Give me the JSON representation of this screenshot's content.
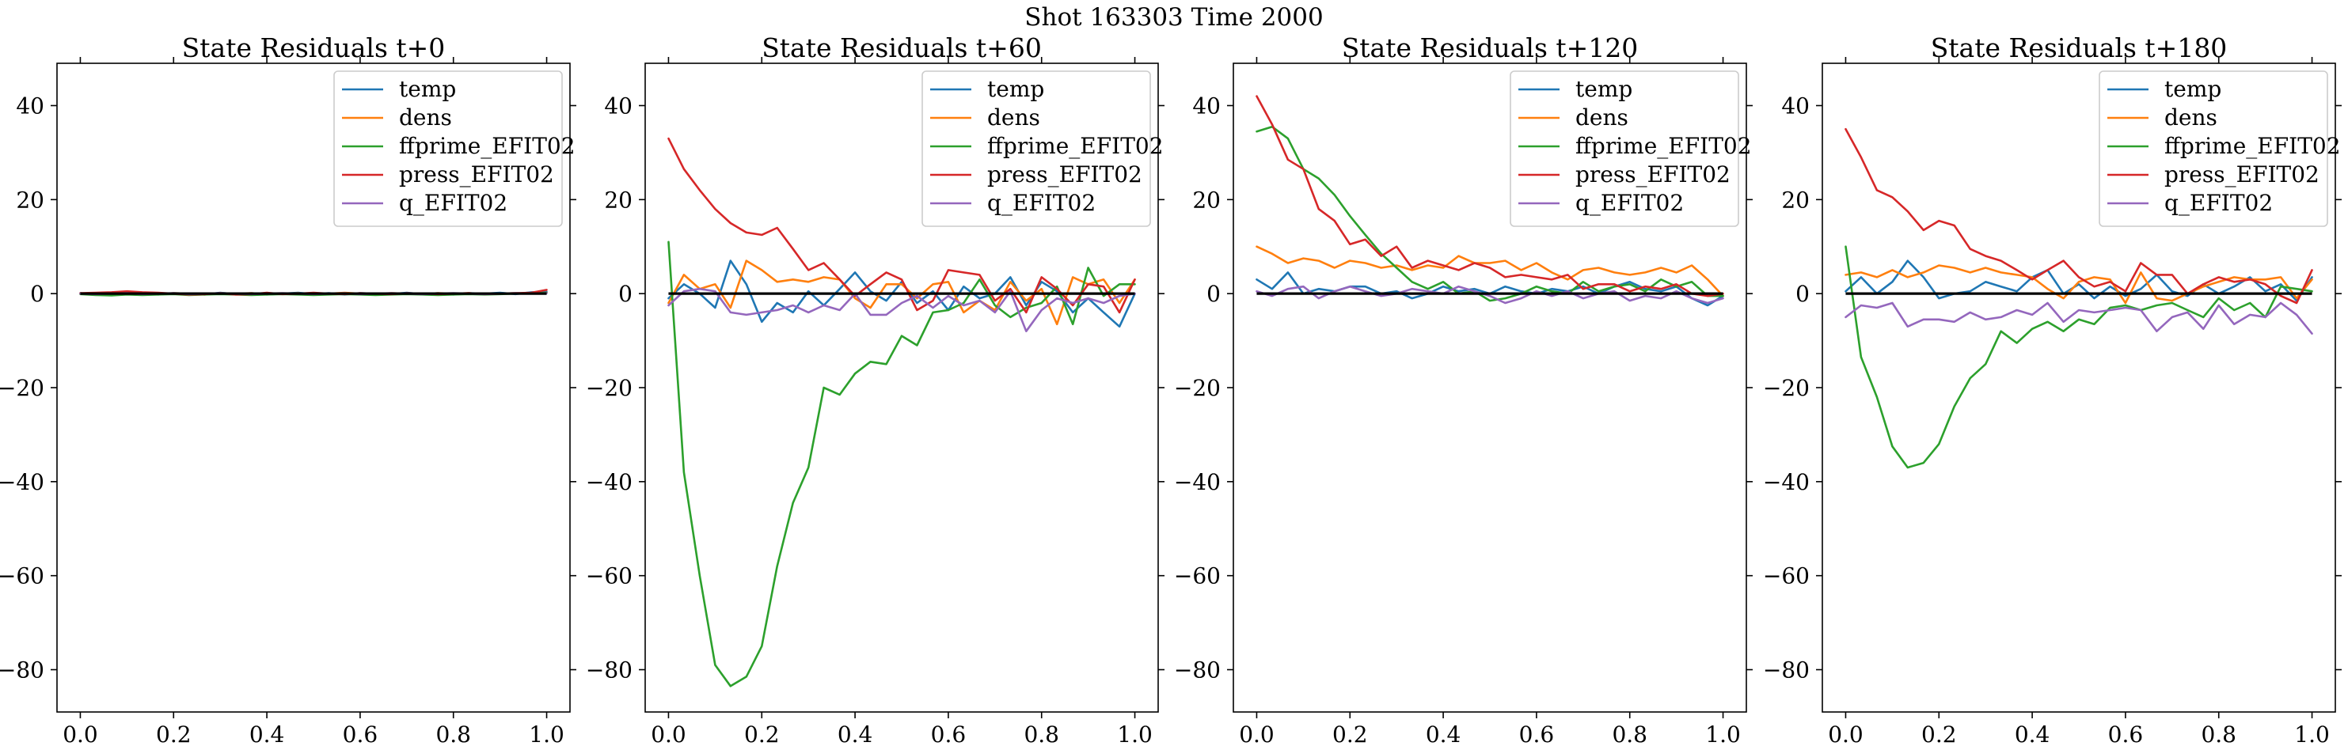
{
  "figure": {
    "suptitle": "Shot 163303   Time 2000"
  },
  "colors": {
    "temp": "#1f77b4",
    "dens": "#ff7f0e",
    "ffprime_EFIT02": "#2ca02c",
    "press_EFIT02": "#d62728",
    "q_EFIT02": "#9467bd",
    "zero_line": "#000000"
  },
  "chart_data": [
    {
      "type": "line",
      "title": "State Residuals t+0",
      "xlabel": "",
      "ylabel": "",
      "xlim": [
        -0.05,
        1.05
      ],
      "ylim": [
        -89,
        49
      ],
      "x_ticks": [
        0.0,
        0.2,
        0.4,
        0.6,
        0.8,
        1.0
      ],
      "x_tick_labels": [
        "0.0",
        "0.2",
        "0.4",
        "0.6",
        "0.8",
        "1.0"
      ],
      "y_ticks": [
        -80,
        -60,
        -40,
        -20,
        0,
        20,
        40
      ],
      "y_tick_labels": [
        "−80",
        "−60",
        "−40",
        "−20",
        "0",
        "20",
        "40"
      ],
      "legend": {
        "position": "upper right",
        "entries": [
          "temp",
          "dens",
          "ffprime_EFIT02",
          "press_EFIT02",
          "q_EFIT02"
        ]
      },
      "x": [
        0.0,
        0.033,
        0.067,
        0.1,
        0.133,
        0.167,
        0.2,
        0.233,
        0.267,
        0.3,
        0.333,
        0.367,
        0.4,
        0.433,
        0.467,
        0.5,
        0.533,
        0.567,
        0.6,
        0.633,
        0.667,
        0.7,
        0.733,
        0.767,
        0.8,
        0.833,
        0.867,
        0.9,
        0.933,
        0.967,
        1.0
      ],
      "series": [
        {
          "name": "temp",
          "values": [
            0.1,
            -0.2,
            0.2,
            -0.1,
            0.1,
            -0.2,
            0.1,
            0.0,
            -0.2,
            0.2,
            -0.1,
            0.1,
            -0.2,
            0.0,
            0.2,
            -0.1,
            0.1,
            -0.2,
            0.1,
            0.0,
            -0.1,
            0.2,
            -0.1,
            0.1,
            -0.2,
            0.1,
            0.0,
            0.2,
            -0.1,
            0.3,
            0.4
          ]
        },
        {
          "name": "dens",
          "values": [
            0.0,
            0.1,
            -0.1,
            0.2,
            0.0,
            -0.1,
            0.1,
            0.0,
            -0.2,
            0.1,
            0.0,
            0.1,
            -0.1,
            0.0,
            0.1,
            -0.1,
            0.0,
            0.2,
            0.0,
            -0.1,
            0.1,
            0.0,
            -0.1,
            0.1,
            0.0,
            0.1,
            -0.1,
            0.0,
            0.1,
            0.0,
            0.2
          ]
        },
        {
          "name": "ffprime_EFIT02",
          "values": [
            -0.1,
            -0.3,
            -0.4,
            -0.2,
            -0.3,
            -0.2,
            -0.1,
            -0.3,
            -0.2,
            -0.1,
            -0.2,
            -0.3,
            -0.2,
            -0.1,
            -0.2,
            -0.3,
            -0.2,
            -0.1,
            -0.2,
            -0.3,
            -0.2,
            -0.1,
            -0.2,
            -0.3,
            -0.2,
            -0.1,
            -0.2,
            -0.1,
            0.0,
            0.1,
            0.2
          ]
        },
        {
          "name": "press_EFIT02",
          "values": [
            0.1,
            0.2,
            0.3,
            0.5,
            0.3,
            0.2,
            0.0,
            -0.2,
            -0.1,
            0.1,
            -0.2,
            -0.1,
            0.2,
            -0.1,
            0.0,
            0.2,
            0.0,
            -0.1,
            0.1,
            0.0,
            -0.1,
            0.1,
            0.0,
            -0.1,
            0.0,
            0.1,
            -0.1,
            0.0,
            0.1,
            0.2,
            0.8
          ]
        },
        {
          "name": "q_EFIT02",
          "values": [
            0.0,
            -0.1,
            0.0,
            0.1,
            -0.1,
            0.0,
            0.1,
            -0.1,
            0.0,
            0.1,
            0.0,
            -0.1,
            0.0,
            0.1,
            0.0,
            -0.1,
            0.0,
            0.1,
            -0.1,
            0.0,
            0.1,
            0.0,
            -0.1,
            0.0,
            0.1,
            0.0,
            -0.1,
            0.0,
            0.1,
            0.0,
            0.1
          ]
        }
      ]
    },
    {
      "type": "line",
      "title": "State Residuals t+60",
      "xlabel": "",
      "ylabel": "",
      "xlim": [
        -0.05,
        1.05
      ],
      "ylim": [
        -89,
        49
      ],
      "x_ticks": [
        0.0,
        0.2,
        0.4,
        0.6,
        0.8,
        1.0
      ],
      "x_tick_labels": [
        "0.0",
        "0.2",
        "0.4",
        "0.6",
        "0.8",
        "1.0"
      ],
      "y_ticks": [
        -80,
        -60,
        -40,
        -20,
        0,
        20,
        40
      ],
      "y_tick_labels": [
        "−80",
        "−60",
        "−40",
        "−20",
        "0",
        "20",
        "40"
      ],
      "legend": {
        "position": "upper right",
        "entries": [
          "temp",
          "dens",
          "ffprime_EFIT02",
          "press_EFIT02",
          "q_EFIT02"
        ]
      },
      "x": [
        0.0,
        0.033,
        0.067,
        0.1,
        0.133,
        0.167,
        0.2,
        0.233,
        0.267,
        0.3,
        0.333,
        0.367,
        0.4,
        0.433,
        0.467,
        0.5,
        0.533,
        0.567,
        0.6,
        0.633,
        0.667,
        0.7,
        0.733,
        0.767,
        0.8,
        0.833,
        0.867,
        0.9,
        0.933,
        0.967,
        1.0
      ],
      "series": [
        {
          "name": "temp",
          "values": [
            -1.0,
            2.0,
            0.0,
            -3.0,
            7.0,
            2.0,
            -6.0,
            -2.0,
            -4.0,
            0.5,
            -2.5,
            1.0,
            4.5,
            0.5,
            -1.5,
            2.5,
            -2.0,
            0.5,
            -3.5,
            1.5,
            -1.0,
            0.0,
            3.5,
            -2.5,
            2.5,
            0.5,
            -4.0,
            -1.0,
            -4.0,
            -7.0,
            0.0
          ]
        },
        {
          "name": "dens",
          "values": [
            -2.0,
            4.0,
            1.0,
            2.0,
            -3.0,
            7.0,
            5.0,
            2.5,
            3.0,
            2.5,
            3.5,
            3.0,
            -1.0,
            -3.0,
            2.0,
            2.0,
            -1.0,
            2.0,
            2.5,
            -4.0,
            -1.5,
            -3.5,
            2.5,
            -1.5,
            1.0,
            -6.5,
            3.5,
            2.0,
            3.0,
            -2.0,
            3.0
          ]
        },
        {
          "name": "ffprime_EFIT02",
          "values": [
            11.0,
            -38.0,
            -60.0,
            -79.0,
            -83.5,
            -81.5,
            -75.0,
            -58.0,
            -44.5,
            -37.0,
            -20.0,
            -21.5,
            -17.0,
            -14.5,
            -15.0,
            -9.0,
            -11.0,
            -4.0,
            -3.5,
            -2.0,
            3.0,
            -2.5,
            -5.0,
            -3.0,
            -2.0,
            1.5,
            -6.5,
            5.5,
            -0.5,
            2.0,
            2.0
          ]
        },
        {
          "name": "press_EFIT02",
          "values": [
            33.0,
            26.5,
            22.0,
            18.0,
            15.0,
            13.0,
            12.5,
            14.0,
            9.5,
            5.0,
            6.5,
            3.0,
            -0.5,
            2.0,
            4.5,
            3.0,
            -3.5,
            -1.5,
            5.0,
            4.5,
            4.0,
            -1.5,
            1.0,
            -4.0,
            3.5,
            1.0,
            -2.5,
            2.0,
            1.5,
            -4.0,
            3.0
          ]
        },
        {
          "name": "q_EFIT02",
          "values": [
            -2.5,
            0.5,
            1.0,
            0.5,
            -4.0,
            -4.5,
            -4.0,
            -3.5,
            -2.5,
            -4.0,
            -2.5,
            -3.5,
            0.0,
            -4.5,
            -4.5,
            -2.0,
            -0.5,
            -3.0,
            -0.5,
            -2.5,
            -1.5,
            -4.0,
            0.5,
            -8.0,
            -3.5,
            -1.0,
            -2.0,
            -1.0,
            -2.0,
            -0.5,
            0.0
          ]
        }
      ]
    },
    {
      "type": "line",
      "title": "State Residuals t+120",
      "xlabel": "",
      "ylabel": "",
      "xlim": [
        -0.05,
        1.05
      ],
      "ylim": [
        -89,
        49
      ],
      "x_ticks": [
        0.0,
        0.2,
        0.4,
        0.6,
        0.8,
        1.0
      ],
      "x_tick_labels": [
        "0.0",
        "0.2",
        "0.4",
        "0.6",
        "0.8",
        "1.0"
      ],
      "y_ticks": [
        -80,
        -60,
        -40,
        -20,
        0,
        20,
        40
      ],
      "y_tick_labels": [
        "−80",
        "−60",
        "−40",
        "−20",
        "0",
        "20",
        "40"
      ],
      "legend": {
        "position": "upper right",
        "entries": [
          "temp",
          "dens",
          "ffprime_EFIT02",
          "press_EFIT02",
          "q_EFIT02"
        ]
      },
      "x": [
        0.0,
        0.033,
        0.067,
        0.1,
        0.133,
        0.167,
        0.2,
        0.233,
        0.267,
        0.3,
        0.333,
        0.367,
        0.4,
        0.433,
        0.467,
        0.5,
        0.533,
        0.567,
        0.6,
        0.633,
        0.667,
        0.7,
        0.733,
        0.767,
        0.8,
        0.833,
        0.867,
        0.9,
        0.933,
        0.967,
        1.0
      ],
      "series": [
        {
          "name": "temp",
          "values": [
            3.0,
            1.0,
            4.5,
            0.0,
            1.0,
            0.5,
            1.5,
            1.5,
            0.0,
            0.5,
            -1.0,
            0.0,
            1.5,
            0.5,
            1.0,
            0.0,
            1.5,
            0.5,
            0.0,
            1.0,
            0.5,
            1.5,
            0.0,
            1.5,
            2.5,
            1.0,
            0.5,
            1.5,
            -1.0,
            -2.5,
            -0.5
          ]
        },
        {
          "name": "dens",
          "values": [
            10.0,
            8.5,
            6.5,
            7.5,
            7.0,
            5.5,
            7.0,
            6.5,
            5.5,
            6.0,
            5.0,
            6.0,
            5.5,
            8.0,
            6.5,
            6.5,
            7.0,
            5.0,
            6.5,
            4.5,
            3.0,
            5.0,
            5.5,
            4.5,
            4.0,
            4.5,
            5.5,
            4.5,
            6.0,
            3.0,
            -0.5
          ]
        },
        {
          "name": "ffprime_EFIT02",
          "values": [
            34.5,
            35.5,
            33.0,
            26.5,
            24.5,
            21.0,
            16.5,
            12.5,
            8.5,
            5.5,
            2.5,
            1.0,
            2.5,
            0.0,
            0.5,
            -1.5,
            -1.0,
            0.0,
            1.5,
            0.5,
            0.0,
            2.5,
            0.5,
            1.5,
            2.0,
            0.5,
            3.0,
            1.5,
            2.5,
            -0.5,
            -0.5
          ]
        },
        {
          "name": "press_EFIT02",
          "values": [
            42.0,
            36.0,
            28.5,
            26.5,
            18.0,
            15.5,
            10.5,
            11.5,
            8.0,
            10.0,
            5.5,
            7.0,
            6.0,
            5.0,
            6.5,
            5.5,
            3.5,
            4.0,
            3.5,
            3.0,
            4.0,
            1.0,
            2.0,
            2.0,
            0.5,
            1.5,
            1.0,
            2.0,
            0.0,
            -0.5,
            0.0
          ]
        },
        {
          "name": "q_EFIT02",
          "values": [
            0.5,
            -0.5,
            1.0,
            1.5,
            -1.0,
            0.5,
            1.5,
            0.5,
            -0.5,
            0.0,
            1.0,
            0.5,
            0.0,
            1.5,
            0.5,
            -0.5,
            -2.0,
            -1.0,
            0.5,
            -0.5,
            0.5,
            -1.0,
            0.0,
            0.5,
            -1.5,
            -0.5,
            -1.0,
            0.5,
            -1.0,
            -2.0,
            -1.0
          ]
        }
      ]
    },
    {
      "type": "line",
      "title": "State Residuals t+180",
      "xlabel": "",
      "ylabel": "",
      "xlim": [
        -0.05,
        1.05
      ],
      "ylim": [
        -89,
        49
      ],
      "x_ticks": [
        0.0,
        0.2,
        0.4,
        0.6,
        0.8,
        1.0
      ],
      "x_tick_labels": [
        "0.0",
        "0.2",
        "0.4",
        "0.6",
        "0.8",
        "1.0"
      ],
      "y_ticks": [
        -80,
        -60,
        -40,
        -20,
        0,
        20,
        40
      ],
      "y_tick_labels": [
        "−80",
        "−60",
        "−40",
        "−20",
        "0",
        "20",
        "40"
      ],
      "legend": {
        "position": "upper right",
        "entries": [
          "temp",
          "dens",
          "ffprime_EFIT02",
          "press_EFIT02",
          "q_EFIT02"
        ]
      },
      "x": [
        0.0,
        0.033,
        0.067,
        0.1,
        0.133,
        0.167,
        0.2,
        0.233,
        0.267,
        0.3,
        0.333,
        0.367,
        0.4,
        0.433,
        0.467,
        0.5,
        0.533,
        0.567,
        0.6,
        0.633,
        0.667,
        0.7,
        0.733,
        0.767,
        0.8,
        0.833,
        0.867,
        0.9,
        0.933,
        0.967,
        1.0
      ],
      "series": [
        {
          "name": "temp",
          "values": [
            0.5,
            3.5,
            0.0,
            2.5,
            7.0,
            3.5,
            -1.0,
            0.0,
            0.5,
            2.5,
            1.5,
            0.5,
            3.5,
            5.0,
            0.0,
            2.0,
            -1.0,
            1.5,
            -0.5,
            1.0,
            4.0,
            0.5,
            -0.5,
            2.0,
            0.0,
            1.5,
            3.5,
            0.5,
            2.0,
            -1.5,
            3.5
          ]
        },
        {
          "name": "dens",
          "values": [
            4.0,
            4.5,
            3.5,
            5.0,
            3.5,
            4.5,
            6.0,
            5.5,
            4.5,
            5.5,
            4.5,
            4.0,
            3.5,
            1.0,
            -1.0,
            2.5,
            3.5,
            3.0,
            -2.0,
            4.5,
            -1.0,
            -1.5,
            0.0,
            1.5,
            2.5,
            3.5,
            3.0,
            3.0,
            3.5,
            -1.0,
            3.0
          ]
        },
        {
          "name": "ffprime_EFIT02",
          "values": [
            10.0,
            -13.5,
            -22.0,
            -32.5,
            -37.0,
            -36.0,
            -32.0,
            -24.0,
            -18.0,
            -15.0,
            -8.0,
            -10.5,
            -7.5,
            -6.0,
            -8.0,
            -5.5,
            -6.5,
            -3.0,
            -2.5,
            -3.5,
            -2.5,
            -2.0,
            -3.5,
            -5.0,
            -1.0,
            -3.5,
            -2.0,
            -5.0,
            1.5,
            1.0,
            0.5
          ]
        },
        {
          "name": "press_EFIT02",
          "values": [
            35.0,
            29.0,
            22.0,
            20.5,
            17.5,
            13.5,
            15.5,
            14.5,
            9.5,
            8.0,
            7.0,
            5.0,
            3.0,
            5.0,
            7.0,
            3.5,
            1.5,
            2.5,
            0.5,
            6.5,
            4.0,
            4.0,
            0.0,
            2.0,
            3.5,
            2.5,
            3.0,
            2.0,
            -0.5,
            -2.0,
            5.0
          ]
        },
        {
          "name": "q_EFIT02",
          "values": [
            -5.0,
            -2.5,
            -3.0,
            -2.0,
            -7.0,
            -5.5,
            -5.5,
            -6.0,
            -4.0,
            -5.5,
            -5.0,
            -3.5,
            -4.5,
            -2.0,
            -6.0,
            -3.5,
            -4.0,
            -3.5,
            -3.0,
            -3.5,
            -8.0,
            -5.0,
            -4.0,
            -7.5,
            -2.5,
            -6.5,
            -4.5,
            -5.0,
            -2.0,
            -4.5,
            -8.5
          ]
        }
      ]
    }
  ]
}
